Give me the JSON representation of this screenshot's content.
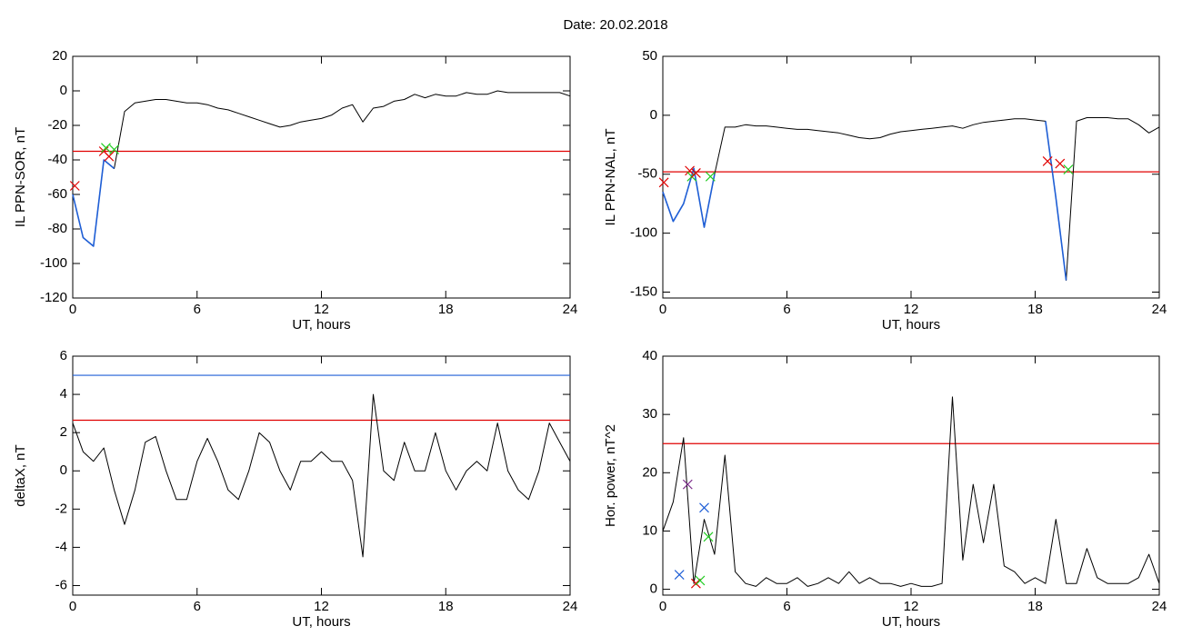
{
  "title": "Date:  20.02.2018",
  "chart_data": [
    {
      "type": "line",
      "ylabel": "IL PPN-SOR, nT",
      "xlabel": "UT, hours",
      "xlim": [
        0,
        24
      ],
      "xticks": [
        0,
        6,
        12,
        18,
        24
      ],
      "ylim": [
        -120,
        20
      ],
      "yticks": [
        -120,
        -100,
        -80,
        -60,
        -40,
        -20,
        0,
        20
      ],
      "x": [
        0,
        0.5,
        1,
        1.5,
        2,
        2.5,
        3,
        3.5,
        4,
        4.5,
        5,
        5.5,
        6,
        6.5,
        7,
        7.5,
        8,
        8.5,
        9,
        9.5,
        10,
        10.5,
        11,
        11.5,
        12,
        12.5,
        13,
        13.5,
        14,
        14.5,
        15,
        15.5,
        16,
        16.5,
        17,
        17.5,
        18,
        18.5,
        19,
        19.5,
        20,
        20.5,
        21,
        21.5,
        22,
        22.5,
        23,
        23.5,
        24
      ],
      "series": [
        {
          "color": "#000000",
          "values": [
            -60,
            -85,
            -90,
            -40,
            -45,
            -12,
            -7,
            -6,
            -5,
            -5,
            -6,
            -7,
            -7,
            -8,
            -10,
            -11,
            -13,
            -15,
            -17,
            -19,
            -21,
            -20,
            -18,
            -17,
            -16,
            -14,
            -10,
            -8,
            -18,
            -10,
            -9,
            -6,
            -5,
            -2,
            -4,
            -2,
            -3,
            -3,
            -1,
            -2,
            -2,
            0,
            -1,
            -1,
            -1,
            -1,
            -1,
            -1,
            -3
          ]
        },
        {
          "color": "#1f5fd6",
          "values": [
            -60,
            -85,
            -90,
            -40,
            -45,
            null,
            null,
            null,
            null,
            null,
            null,
            null,
            null,
            null,
            null,
            null,
            null,
            null,
            null,
            null,
            null,
            null,
            null,
            null,
            null,
            null,
            null,
            null,
            null,
            null,
            null,
            null,
            null,
            null,
            null,
            null,
            null,
            null,
            null,
            null,
            null,
            null,
            null,
            null,
            null,
            null,
            null,
            null,
            null
          ]
        }
      ],
      "hlines": [
        {
          "value": -35,
          "color": "#e00000"
        }
      ],
      "markers": [
        {
          "x": 0.1,
          "y": -55,
          "color": "#e00000"
        },
        {
          "x": 1.5,
          "y": -35,
          "color": "#e00000"
        },
        {
          "x": 1.6,
          "y": -33,
          "color": "#22cc22"
        },
        {
          "x": 1.75,
          "y": -38,
          "color": "#e00000"
        },
        {
          "x": 2.0,
          "y": -34,
          "color": "#22cc22"
        }
      ]
    },
    {
      "type": "line",
      "ylabel": "IL PPN-NAL, nT",
      "xlabel": "UT, hours",
      "xlim": [
        0,
        24
      ],
      "xticks": [
        0,
        6,
        12,
        18,
        24
      ],
      "ylim": [
        -155,
        50
      ],
      "yticks": [
        -150,
        -100,
        -50,
        0,
        50
      ],
      "x": [
        0,
        0.5,
        1,
        1.5,
        2,
        2.5,
        3,
        3.5,
        4,
        4.5,
        5,
        5.5,
        6,
        6.5,
        7,
        7.5,
        8,
        8.5,
        9,
        9.5,
        10,
        10.5,
        11,
        11.5,
        12,
        12.5,
        13,
        13.5,
        14,
        14.5,
        15,
        15.5,
        16,
        16.5,
        17,
        17.5,
        18,
        18.5,
        19,
        19.5,
        20,
        20.5,
        21,
        21.5,
        22,
        22.5,
        23,
        23.5,
        24
      ],
      "series": [
        {
          "color": "#000000",
          "values": [
            -65,
            -90,
            -75,
            -45,
            -95,
            -50,
            -10,
            -10,
            -8,
            -9,
            -9,
            -10,
            -11,
            -12,
            -12,
            -13,
            -14,
            -15,
            -17,
            -19,
            -20,
            -19,
            -16,
            -14,
            -13,
            -12,
            -11,
            -10,
            -9,
            -11,
            -8,
            -6,
            -5,
            -4,
            -3,
            -3,
            -4,
            -5,
            -70,
            -140,
            -5,
            -2,
            -2,
            -2,
            -3,
            -3,
            -8,
            -15,
            -10
          ]
        },
        {
          "color": "#1f5fd6",
          "values": [
            -65,
            -90,
            -75,
            -45,
            -95,
            -50,
            null,
            null,
            null,
            null,
            null,
            null,
            null,
            null,
            null,
            null,
            null,
            null,
            null,
            null,
            null,
            null,
            null,
            null,
            null,
            null,
            null,
            null,
            null,
            null,
            null,
            null,
            null,
            null,
            null,
            null,
            null,
            -5,
            -70,
            -140,
            null,
            null,
            null,
            null,
            null,
            null,
            null,
            null,
            null
          ]
        }
      ],
      "hlines": [
        {
          "value": -48,
          "color": "#e00000"
        }
      ],
      "markers": [
        {
          "x": 0.05,
          "y": -57,
          "color": "#e00000"
        },
        {
          "x": 1.3,
          "y": -47,
          "color": "#e00000"
        },
        {
          "x": 1.4,
          "y": -52,
          "color": "#22cc22"
        },
        {
          "x": 1.6,
          "y": -49,
          "color": "#e00000"
        },
        {
          "x": 2.3,
          "y": -52,
          "color": "#22cc22"
        },
        {
          "x": 18.6,
          "y": -39,
          "color": "#e00000"
        },
        {
          "x": 19.2,
          "y": -41,
          "color": "#e00000"
        },
        {
          "x": 19.6,
          "y": -46,
          "color": "#22cc22"
        }
      ]
    },
    {
      "type": "line",
      "ylabel": "deltaX, nT",
      "xlabel": "UT, hours",
      "xlim": [
        0,
        24
      ],
      "xticks": [
        0,
        6,
        12,
        18,
        24
      ],
      "ylim": [
        -6.5,
        6
      ],
      "yticks": [
        -6,
        -4,
        -2,
        0,
        2,
        4,
        6
      ],
      "x": [
        0,
        0.5,
        1,
        1.5,
        2,
        2.5,
        3,
        3.5,
        4,
        4.5,
        5,
        5.5,
        6,
        6.5,
        7,
        7.5,
        8,
        8.5,
        9,
        9.5,
        10,
        10.5,
        11,
        11.5,
        12,
        12.5,
        13,
        13.5,
        14,
        14.5,
        15,
        15.5,
        16,
        16.5,
        17,
        17.5,
        18,
        18.5,
        19,
        19.5,
        20,
        20.5,
        21,
        21.5,
        22,
        22.5,
        23,
        23.5,
        24
      ],
      "series": [
        {
          "color": "#000000",
          "values": [
            2.5,
            1,
            0.5,
            1.2,
            -1,
            -2.8,
            -1,
            1.5,
            1.8,
            0,
            -1.5,
            -1.5,
            0.5,
            1.7,
            0.5,
            -1,
            -1.5,
            0,
            2,
            1.5,
            0,
            -1,
            0.5,
            0.5,
            1,
            0.5,
            0.5,
            -0.5,
            -4.5,
            4,
            0,
            -0.5,
            1.5,
            0,
            0,
            2,
            0,
            -1,
            0,
            0.5,
            0,
            2.5,
            0,
            -1,
            -1.5,
            0,
            2.5,
            1.5,
            0.5
          ]
        }
      ],
      "hlines": [
        {
          "value": 5,
          "color": "#1f5fd6"
        },
        {
          "value": 2.65,
          "color": "#e00000"
        }
      ],
      "markers": []
    },
    {
      "type": "line",
      "ylabel": "Hor. power, nT^2",
      "xlabel": "UT, hours",
      "xlim": [
        0,
        24
      ],
      "xticks": [
        0,
        6,
        12,
        18,
        24
      ],
      "ylim": [
        -1,
        40
      ],
      "yticks": [
        0,
        10,
        20,
        30,
        40
      ],
      "x": [
        0,
        0.5,
        1,
        1.5,
        2,
        2.5,
        3,
        3.5,
        4,
        4.5,
        5,
        5.5,
        6,
        6.5,
        7,
        7.5,
        8,
        8.5,
        9,
        9.5,
        10,
        10.5,
        11,
        11.5,
        12,
        12.5,
        13,
        13.5,
        14,
        14.5,
        15,
        15.5,
        16,
        16.5,
        17,
        17.5,
        18,
        18.5,
        19,
        19.5,
        20,
        20.5,
        21,
        21.5,
        22,
        22.5,
        23,
        23.5,
        24
      ],
      "series": [
        {
          "color": "#000000",
          "values": [
            10,
            15,
            26,
            1,
            12,
            6,
            23,
            3,
            1,
            0.5,
            2,
            1,
            1,
            2,
            0.5,
            1,
            2,
            1,
            3,
            1,
            2,
            1,
            1,
            0.5,
            1,
            0.5,
            0.5,
            1,
            33,
            5,
            18,
            8,
            18,
            4,
            3,
            1,
            2,
            1,
            12,
            1,
            1,
            7,
            2,
            1,
            1,
            1,
            2,
            6,
            1
          ]
        }
      ],
      "hlines": [
        {
          "value": 25,
          "color": "#e00000"
        }
      ],
      "markers": [
        {
          "x": 0.8,
          "y": 2.5,
          "color": "#1f5fd6"
        },
        {
          "x": 1.2,
          "y": 18,
          "color": "#7a2a8a"
        },
        {
          "x": 1.6,
          "y": 1,
          "color": "#e00000"
        },
        {
          "x": 1.8,
          "y": 1.5,
          "color": "#22cc22"
        },
        {
          "x": 2.0,
          "y": 14,
          "color": "#1f5fd6"
        },
        {
          "x": 2.2,
          "y": 9,
          "color": "#22cc22"
        }
      ]
    }
  ]
}
